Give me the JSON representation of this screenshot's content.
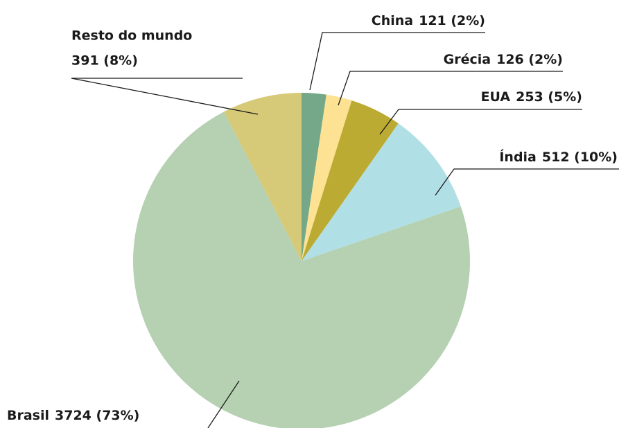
{
  "chart_data": {
    "type": "pie",
    "categories": [
      "China",
      "Grécia",
      "EUA",
      "Índia",
      "Brasil",
      "Resto do mundo"
    ],
    "values": [
      121,
      126,
      253,
      512,
      3724,
      391
    ],
    "value_labels": [
      "121 (2%)",
      "126 (2%)",
      "253 (5%)",
      "512 (10%)",
      "3724 (73%)",
      "391 (8%)"
    ],
    "colors": [
      "#74a888",
      "#fde293",
      "#bcab32",
      "#b1dfe6",
      "#b5d1b2",
      "#d6c977"
    ]
  }
}
